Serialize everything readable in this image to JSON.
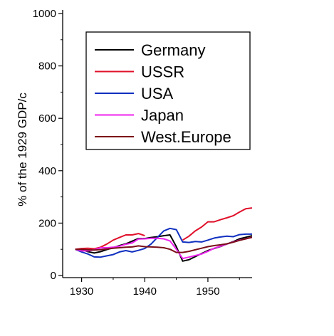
{
  "chart_data": {
    "type": "line",
    "title": "",
    "xlabel": "",
    "ylabel": "% of the 1929 GDP/c",
    "xlim": [
      1927,
      1957
    ],
    "ylim": [
      0,
      1000
    ],
    "x_ticks": [
      1930,
      1940,
      1950
    ],
    "y_ticks": [
      0,
      200,
      400,
      600,
      800,
      1000
    ],
    "x_tick_labels": [
      "1930",
      "1940",
      "1950"
    ],
    "y_tick_labels": [
      "0",
      "200",
      "400",
      "600",
      "800",
      "1000"
    ],
    "grid": false,
    "legend_position": "top-right",
    "series": [
      {
        "name": "Germany",
        "color": "#000000",
        "x": [
          1929,
          1930,
          1931,
          1932,
          1933,
          1934,
          1935,
          1936,
          1937,
          1938,
          1939,
          1940,
          1941,
          1942,
          1943,
          1944,
          1945,
          1946,
          1947,
          1948,
          1949,
          1950,
          1951,
          1952,
          1953,
          1954,
          1955,
          1956,
          1957
        ],
        "y": [
          100,
          99,
          91,
          86,
          91,
          99,
          106,
          114,
          121,
          131,
          141,
          141,
          145,
          148,
          152,
          155,
          110,
          55,
          60,
          72,
          84,
          95,
          103,
          111,
          120,
          129,
          140,
          146,
          152
        ]
      },
      {
        "name": "USSR",
        "color": "#e0102a",
        "x": [
          1929,
          1930,
          1931,
          1932,
          1933,
          1934,
          1935,
          1936,
          1937,
          1938,
          1939,
          1940
        ],
        "y": [
          100,
          103,
          104,
          102,
          108,
          120,
          135,
          145,
          155,
          155,
          160,
          152
        ]
      },
      {
        "name": "USSR",
        "color": "#e0102a",
        "x": [
          1946,
          1947,
          1948,
          1949,
          1950,
          1951,
          1952,
          1953,
          1954,
          1955,
          1956,
          1957
        ],
        "y": [
          135,
          150,
          170,
          185,
          205,
          205,
          213,
          220,
          228,
          242,
          255,
          258
        ]
      },
      {
        "name": "USA",
        "color": "#1030c0",
        "x": [
          1929,
          1930,
          1931,
          1932,
          1933,
          1934,
          1935,
          1936,
          1937,
          1938,
          1939,
          1940,
          1941,
          1942,
          1943,
          1944,
          1945,
          1946,
          1947,
          1948,
          1949,
          1950,
          1951,
          1952,
          1953,
          1954,
          1955,
          1956,
          1957
        ],
        "y": [
          100,
          90,
          82,
          71,
          70,
          75,
          80,
          90,
          95,
          90,
          96,
          103,
          120,
          145,
          170,
          180,
          175,
          128,
          126,
          130,
          128,
          135,
          143,
          147,
          150,
          148,
          156,
          158,
          158
        ]
      },
      {
        "name": "Japan",
        "color": "#ee22ee",
        "x": [
          1929,
          1930,
          1931,
          1932,
          1933,
          1934,
          1935,
          1936,
          1937,
          1938,
          1939,
          1940,
          1941,
          1942,
          1943,
          1944,
          1945,
          1946,
          1947,
          1948,
          1949,
          1950,
          1951,
          1952,
          1953,
          1954,
          1955,
          1956,
          1957
        ],
        "y": [
          100,
          94,
          94,
          98,
          106,
          106,
          108,
          112,
          119,
          124,
          139,
          140,
          142,
          142,
          140,
          132,
          100,
          65,
          70,
          76,
          82,
          92,
          104,
          112,
          120,
          128,
          135,
          140,
          146
        ]
      },
      {
        "name": "West.Europe",
        "color": "#7a0e18",
        "x": [
          1929,
          1930,
          1931,
          1932,
          1933,
          1934,
          1935,
          1936,
          1937,
          1938,
          1939,
          1940,
          1941,
          1942,
          1943,
          1944,
          1945,
          1946,
          1947,
          1948,
          1949,
          1950,
          1951,
          1952,
          1953,
          1954,
          1955,
          1956,
          1957
        ],
        "y": [
          100,
          100,
          98,
          97,
          99,
          101,
          104,
          106,
          108,
          109,
          113,
          110,
          109,
          108,
          106,
          100,
          88,
          88,
          92,
          98,
          104,
          110,
          114,
          117,
          121,
          127,
          134,
          140,
          146
        ]
      }
    ],
    "legend": [
      {
        "label": "Germany",
        "color": "#000000"
      },
      {
        "label": "USSR",
        "color": "#e0102a"
      },
      {
        "label": "USA",
        "color": "#1030c0"
      },
      {
        "label": "Japan",
        "color": "#ee22ee"
      },
      {
        "label": "West.Europe",
        "color": "#7a0e18"
      }
    ]
  }
}
